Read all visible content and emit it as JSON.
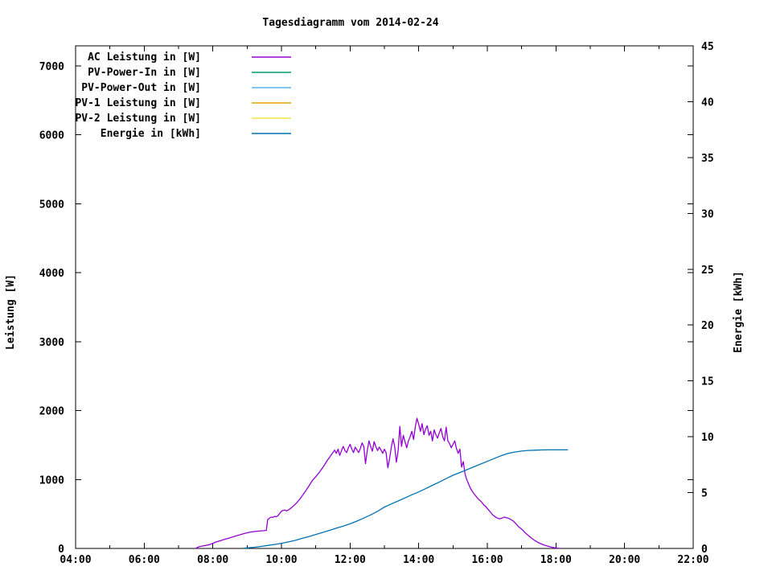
{
  "window": {
    "background": "#ffffff",
    "foreground": "#000000"
  },
  "chart_data": {
    "type": "line",
    "title": "Tagesdiagramm vom 2014-02-24",
    "grid": false,
    "legend_position": "top-left",
    "x_axis": {
      "range_hours": [
        4,
        22
      ],
      "tick_hours": [
        4,
        6,
        8,
        10,
        12,
        14,
        16,
        18,
        20,
        22
      ],
      "tick_labels": [
        "04:00",
        "06:00",
        "08:00",
        "10:00",
        "12:00",
        "14:00",
        "16:00",
        "18:00",
        "20:00",
        "22:00"
      ],
      "minor_tick_hours": [
        5,
        7,
        9,
        11,
        13,
        15,
        17,
        19,
        21
      ]
    },
    "y1_axis": {
      "label": "Leistung [W]",
      "ticks": [
        0,
        1000,
        2000,
        3000,
        4000,
        5000,
        6000,
        7000
      ],
      "tick_labels": [
        "0",
        "1000",
        "2000",
        "3000",
        "4000",
        "5000",
        "6000",
        "7000"
      ],
      "range": [
        0,
        7290
      ]
    },
    "y2_axis": {
      "label": "Energie [kWh]",
      "ticks": [
        0,
        5,
        10,
        15,
        20,
        25,
        30,
        35,
        40,
        45
      ],
      "tick_labels": [
        "0",
        "5",
        "10",
        "15",
        "20",
        "25",
        "30",
        "35",
        "40",
        "45"
      ],
      "range": [
        0,
        45
      ]
    },
    "series": [
      {
        "name": "AC Leistung in [W]",
        "axis": "y1",
        "color": "#9400d3",
        "points": [
          [
            7.5,
            0
          ],
          [
            7.55,
            15
          ],
          [
            7.6,
            25
          ],
          [
            7.7,
            35
          ],
          [
            7.8,
            45
          ],
          [
            7.9,
            55
          ],
          [
            8.0,
            75
          ],
          [
            8.1,
            95
          ],
          [
            8.2,
            110
          ],
          [
            8.3,
            125
          ],
          [
            8.4,
            140
          ],
          [
            8.5,
            155
          ],
          [
            8.6,
            170
          ],
          [
            8.7,
            185
          ],
          [
            8.8,
            200
          ],
          [
            8.9,
            215
          ],
          [
            9.0,
            228
          ],
          [
            9.1,
            238
          ],
          [
            9.2,
            245
          ],
          [
            9.3,
            250
          ],
          [
            9.4,
            255
          ],
          [
            9.5,
            258
          ],
          [
            9.56,
            263
          ],
          [
            9.6,
            420
          ],
          [
            9.65,
            440
          ],
          [
            9.7,
            455
          ],
          [
            9.75,
            450
          ],
          [
            9.8,
            465
          ],
          [
            9.85,
            460
          ],
          [
            9.9,
            475
          ],
          [
            9.95,
            510
          ],
          [
            10.0,
            540
          ],
          [
            10.05,
            552
          ],
          [
            10.1,
            558
          ],
          [
            10.15,
            545
          ],
          [
            10.2,
            558
          ],
          [
            10.25,
            575
          ],
          [
            10.3,
            595
          ],
          [
            10.35,
            615
          ],
          [
            10.4,
            640
          ],
          [
            10.45,
            665
          ],
          [
            10.5,
            695
          ],
          [
            10.55,
            725
          ],
          [
            10.6,
            760
          ],
          [
            10.65,
            795
          ],
          [
            10.7,
            830
          ],
          [
            10.75,
            868
          ],
          [
            10.8,
            905
          ],
          [
            10.85,
            945
          ],
          [
            10.9,
            985
          ],
          [
            10.95,
            1012
          ],
          [
            11.0,
            1040
          ],
          [
            11.05,
            1072
          ],
          [
            11.1,
            1100
          ],
          [
            11.15,
            1138
          ],
          [
            11.2,
            1170
          ],
          [
            11.25,
            1208
          ],
          [
            11.3,
            1248
          ],
          [
            11.35,
            1288
          ],
          [
            11.4,
            1320
          ],
          [
            11.45,
            1358
          ],
          [
            11.5,
            1390
          ],
          [
            11.55,
            1425
          ],
          [
            11.6,
            1380
          ],
          [
            11.65,
            1440
          ],
          [
            11.7,
            1350
          ],
          [
            11.75,
            1420
          ],
          [
            11.8,
            1480
          ],
          [
            11.85,
            1420
          ],
          [
            11.9,
            1390
          ],
          [
            11.95,
            1460
          ],
          [
            12.0,
            1510
          ],
          [
            12.05,
            1440
          ],
          [
            12.1,
            1390
          ],
          [
            12.15,
            1470
          ],
          [
            12.2,
            1430
          ],
          [
            12.25,
            1390
          ],
          [
            12.3,
            1450
          ],
          [
            12.35,
            1530
          ],
          [
            12.4,
            1480
          ],
          [
            12.45,
            1230
          ],
          [
            12.5,
            1420
          ],
          [
            12.55,
            1560
          ],
          [
            12.6,
            1480
          ],
          [
            12.65,
            1410
          ],
          [
            12.7,
            1550
          ],
          [
            12.75,
            1480
          ],
          [
            12.8,
            1420
          ],
          [
            12.85,
            1470
          ],
          [
            12.9,
            1430
          ],
          [
            12.95,
            1380
          ],
          [
            13.0,
            1440
          ],
          [
            13.05,
            1390
          ],
          [
            13.1,
            1170
          ],
          [
            13.15,
            1300
          ],
          [
            13.2,
            1460
          ],
          [
            13.25,
            1590
          ],
          [
            13.3,
            1480
          ],
          [
            13.35,
            1250
          ],
          [
            13.4,
            1420
          ],
          [
            13.45,
            1770
          ],
          [
            13.5,
            1480
          ],
          [
            13.55,
            1640
          ],
          [
            13.6,
            1550
          ],
          [
            13.65,
            1460
          ],
          [
            13.7,
            1560
          ],
          [
            13.75,
            1620
          ],
          [
            13.8,
            1700
          ],
          [
            13.85,
            1580
          ],
          [
            13.9,
            1760
          ],
          [
            13.95,
            1890
          ],
          [
            14.0,
            1800
          ],
          [
            14.05,
            1700
          ],
          [
            14.1,
            1810
          ],
          [
            14.15,
            1650
          ],
          [
            14.2,
            1730
          ],
          [
            14.25,
            1780
          ],
          [
            14.3,
            1640
          ],
          [
            14.35,
            1700
          ],
          [
            14.4,
            1560
          ],
          [
            14.45,
            1720
          ],
          [
            14.5,
            1650
          ],
          [
            14.55,
            1600
          ],
          [
            14.6,
            1680
          ],
          [
            14.65,
            1740
          ],
          [
            14.7,
            1620
          ],
          [
            14.75,
            1560
          ],
          [
            14.8,
            1760
          ],
          [
            14.85,
            1560
          ],
          [
            14.9,
            1520
          ],
          [
            14.95,
            1460
          ],
          [
            15.0,
            1510
          ],
          [
            15.05,
            1560
          ],
          [
            15.1,
            1450
          ],
          [
            15.15,
            1380
          ],
          [
            15.2,
            1440
          ],
          [
            15.25,
            1180
          ],
          [
            15.3,
            1260
          ],
          [
            15.35,
            1080
          ],
          [
            15.4,
            1000
          ],
          [
            15.45,
            940
          ],
          [
            15.5,
            880
          ],
          [
            15.55,
            840
          ],
          [
            15.6,
            800
          ],
          [
            15.65,
            770
          ],
          [
            15.7,
            740
          ],
          [
            15.75,
            710
          ],
          [
            15.8,
            690
          ],
          [
            15.85,
            660
          ],
          [
            15.9,
            630
          ],
          [
            15.95,
            610
          ],
          [
            16.0,
            580
          ],
          [
            16.05,
            550
          ],
          [
            16.1,
            520
          ],
          [
            16.15,
            490
          ],
          [
            16.2,
            470
          ],
          [
            16.25,
            450
          ],
          [
            16.3,
            440
          ],
          [
            16.35,
            430
          ],
          [
            16.4,
            435
          ],
          [
            16.45,
            445
          ],
          [
            16.5,
            455
          ],
          [
            16.55,
            445
          ],
          [
            16.6,
            440
          ],
          [
            16.65,
            430
          ],
          [
            16.7,
            415
          ],
          [
            16.75,
            400
          ],
          [
            16.8,
            375
          ],
          [
            16.85,
            350
          ],
          [
            16.9,
            320
          ],
          [
            17.0,
            280
          ],
          [
            17.1,
            230
          ],
          [
            17.2,
            185
          ],
          [
            17.3,
            145
          ],
          [
            17.4,
            110
          ],
          [
            17.5,
            82
          ],
          [
            17.6,
            60
          ],
          [
            17.7,
            42
          ],
          [
            17.8,
            28
          ],
          [
            17.9,
            16
          ],
          [
            18.0,
            7
          ],
          [
            18.08,
            2
          ],
          [
            18.12,
            0
          ]
        ]
      },
      {
        "name": "PV-Power-In in [W]",
        "axis": "y1",
        "color": "#009e73",
        "points": []
      },
      {
        "name": "PV-Power-Out in [W]",
        "axis": "y1",
        "color": "#56b4e9",
        "points": []
      },
      {
        "name": "PV-1 Leistung in [W]",
        "axis": "y1",
        "color": "#e69f00",
        "points": []
      },
      {
        "name": "PV-2 Leistung in [W]",
        "axis": "y1",
        "color": "#f0e442",
        "points": []
      },
      {
        "name": "Energie in [kWh]",
        "axis": "y2",
        "color": "#0072b2",
        "points": [
          [
            8.9,
            0.02
          ],
          [
            9.0,
            0.05
          ],
          [
            9.2,
            0.1
          ],
          [
            9.4,
            0.18
          ],
          [
            9.6,
            0.27
          ],
          [
            9.8,
            0.36
          ],
          [
            10.0,
            0.46
          ],
          [
            10.2,
            0.58
          ],
          [
            10.4,
            0.72
          ],
          [
            10.6,
            0.9
          ],
          [
            10.8,
            1.06
          ],
          [
            11.0,
            1.25
          ],
          [
            11.2,
            1.43
          ],
          [
            11.4,
            1.62
          ],
          [
            11.6,
            1.82
          ],
          [
            11.8,
            2.0
          ],
          [
            12.0,
            2.2
          ],
          [
            12.2,
            2.45
          ],
          [
            12.4,
            2.72
          ],
          [
            12.6,
            3.0
          ],
          [
            12.8,
            3.33
          ],
          [
            13.0,
            3.7
          ],
          [
            13.2,
            3.98
          ],
          [
            13.4,
            4.25
          ],
          [
            13.6,
            4.52
          ],
          [
            13.8,
            4.8
          ],
          [
            14.0,
            5.06
          ],
          [
            14.2,
            5.35
          ],
          [
            14.4,
            5.65
          ],
          [
            14.6,
            5.95
          ],
          [
            14.8,
            6.25
          ],
          [
            15.0,
            6.55
          ],
          [
            15.2,
            6.8
          ],
          [
            15.4,
            7.05
          ],
          [
            15.6,
            7.3
          ],
          [
            15.8,
            7.55
          ],
          [
            16.0,
            7.8
          ],
          [
            16.2,
            8.05
          ],
          [
            16.4,
            8.3
          ],
          [
            16.6,
            8.5
          ],
          [
            16.8,
            8.63
          ],
          [
            17.0,
            8.72
          ],
          [
            17.2,
            8.78
          ],
          [
            17.4,
            8.8
          ],
          [
            17.6,
            8.82
          ],
          [
            17.8,
            8.83
          ],
          [
            18.0,
            8.83
          ],
          [
            18.2,
            8.83
          ],
          [
            18.35,
            8.83
          ]
        ]
      }
    ]
  }
}
